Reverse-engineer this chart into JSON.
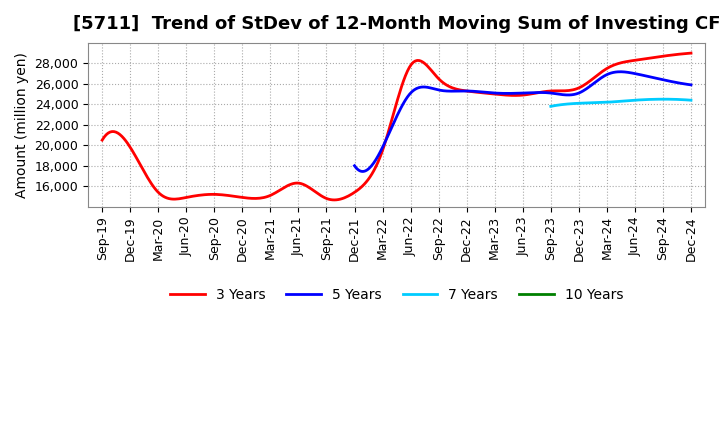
{
  "title": "[5711]  Trend of StDev of 12-Month Moving Sum of Investing CF",
  "ylabel": "Amount (million yen)",
  "background_color": "#ffffff",
  "grid_color": "#aaaaaa",
  "title_fontsize": 13,
  "label_fontsize": 10,
  "tick_fontsize": 9,
  "xtick_labels": [
    "Sep-19",
    "Dec-19",
    "Mar-20",
    "Jun-20",
    "Sep-20",
    "Dec-20",
    "Mar-21",
    "Jun-21",
    "Sep-21",
    "Dec-21",
    "Mar-22",
    "Jun-22",
    "Sep-22",
    "Dec-22",
    "Mar-23",
    "Jun-23",
    "Sep-23",
    "Dec-23",
    "Mar-24",
    "Jun-24",
    "Sep-24",
    "Dec-24"
  ],
  "series": {
    "3 Years": {
      "color": "#ff0000",
      "xi": [
        0,
        1,
        2,
        3,
        4,
        5,
        6,
        7,
        8,
        9,
        10,
        11,
        12,
        13,
        14,
        15,
        16,
        17,
        18,
        19,
        20,
        21
      ],
      "y": [
        20500,
        19800,
        15400,
        14900,
        15200,
        14900,
        15100,
        16300,
        14800,
        15400,
        19500,
        27800,
        26500,
        25300,
        25000,
        24900,
        25300,
        25600,
        27500,
        28300,
        28700,
        29000
      ]
    },
    "5 Years": {
      "color": "#0000ff",
      "xi": [
        9,
        10,
        11,
        12,
        13,
        14,
        15,
        16,
        17,
        18,
        19,
        20,
        21
      ],
      "y": [
        18000,
        19800,
        25100,
        25400,
        25300,
        25100,
        25100,
        25100,
        25100,
        26900,
        27000,
        26400,
        25900
      ]
    },
    "7 Years": {
      "color": "#00ccff",
      "xi": [
        16,
        17,
        18,
        19,
        20,
        21
      ],
      "y": [
        23800,
        24100,
        24200,
        24400,
        24500,
        24400
      ]
    },
    "10 Years": {
      "color": "#008000",
      "xi": [],
      "y": []
    }
  },
  "ylim": [
    14000,
    30000
  ],
  "yticks": [
    16000,
    18000,
    20000,
    22000,
    24000,
    26000,
    28000
  ]
}
